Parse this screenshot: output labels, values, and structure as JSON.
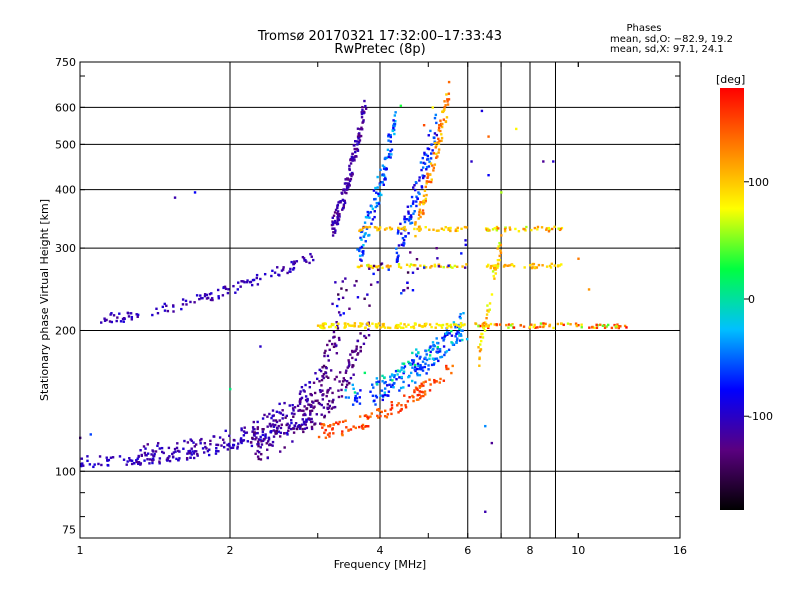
{
  "chart_data": {
    "type": "scatter",
    "title": "Tromsø 20170321 17:32:00–17:33:43",
    "subtitle": "RwPretec (8p)",
    "xlabel": "Frequency [MHz]",
    "ylabel": "Stationary phase Virtual Height [km]",
    "x_scale": "log",
    "y_scale": "log",
    "xlim": [
      1,
      16
    ],
    "ylim": [
      72,
      750
    ],
    "x_ticks": [
      1,
      2,
      4,
      6,
      8,
      10,
      16
    ],
    "x_grid": [
      2,
      4,
      6,
      7,
      8,
      9
    ],
    "y_ticks": [
      75,
      100,
      200,
      300,
      400,
      500,
      600,
      750
    ],
    "y_grid": [
      100,
      200,
      300,
      400,
      500,
      600
    ],
    "phase_info": {
      "heading": "Phases",
      "line_o": "mean, sd,O: −82.9, 19.2",
      "line_x": "mean, sd,X:  97.1, 24.1"
    },
    "colorbar": {
      "label": "[deg]",
      "range": [
        -180,
        180
      ],
      "ticks": [
        100,
        0,
        -100
      ],
      "colors": [
        "#000000",
        "#5a0080",
        "#0000ff",
        "#00c0ff",
        "#00ff40",
        "#ffff00",
        "#ff8000",
        "#ff0000"
      ]
    },
    "series": [
      {
        "traces": [
          {
            "f0": 1.0,
            "f1": 2.9,
            "h0": 105,
            "h1": 128,
            "curve": 2.2,
            "spread": 0.028,
            "n": 160,
            "ph": [
              -115,
              -90
            ]
          },
          {
            "f0": 1.3,
            "f1": 3.05,
            "h0": 110,
            "h1": 160,
            "curve": 2.6,
            "spread": 0.05,
            "n": 130,
            "ph": [
              -125,
              -95
            ]
          },
          {
            "f0": 2.2,
            "f1": 3.35,
            "h0": 115,
            "h1": 210,
            "curve": 2.4,
            "spread": 0.09,
            "n": 140,
            "ph": [
              -140,
              -105
            ]
          },
          {
            "f0": 2.8,
            "f1": 3.8,
            "h0": 130,
            "h1": 205,
            "curve": 1.8,
            "spread": 0.07,
            "n": 110,
            "ph": [
              -140,
              -110
            ]
          },
          {
            "f0": 1.1,
            "f1": 3.0,
            "h0": 212,
            "h1": 290,
            "curve": 1.5,
            "spread": 0.025,
            "n": 120,
            "ph": [
              -120,
              -90
            ]
          },
          {
            "f0": 3.0,
            "f1": 5.6,
            "h0": 122,
            "h1": 168,
            "curve": 1.8,
            "spread": 0.035,
            "n": 120,
            "ph": [
              130,
              170
            ]
          },
          {
            "f0": 3.4,
            "f1": 5.8,
            "h0": 140,
            "h1": 200,
            "curve": 1.6,
            "spread": 0.06,
            "n": 100,
            "ph": [
              -90,
              -40
            ]
          },
          {
            "f0": 4.0,
            "f1": 5.9,
            "h0": 150,
            "h1": 210,
            "curve": 1.4,
            "spread": 0.06,
            "n": 80,
            "ph": [
              -70,
              -20
            ]
          },
          {
            "f0": 3.2,
            "f1": 3.75,
            "h0": 330,
            "h1": 620,
            "curve": 1.3,
            "spread": 0.06,
            "n": 140,
            "ph": [
              -130,
              -100
            ]
          },
          {
            "f0": 3.6,
            "f1": 4.3,
            "h0": 290,
            "h1": 560,
            "curve": 1.2,
            "spread": 0.08,
            "n": 110,
            "ph": [
              -90,
              -20
            ]
          },
          {
            "f0": 4.3,
            "f1": 5.2,
            "h0": 300,
            "h1": 560,
            "curve": 1.2,
            "spread": 0.08,
            "n": 100,
            "ph": [
              -100,
              -40
            ]
          },
          {
            "f0": 4.7,
            "f1": 5.5,
            "h0": 330,
            "h1": 640,
            "curve": 1.1,
            "spread": 0.07,
            "n": 90,
            "ph": [
              90,
              150
            ]
          },
          {
            "f0": 3.0,
            "f1": 6.0,
            "h0": 205,
            "h1": 205,
            "curve": 1.0,
            "spread": 0.012,
            "n": 110,
            "ph": [
              70,
              110
            ]
          },
          {
            "f0": 6.2,
            "f1": 12.5,
            "h0": 205,
            "h1": 205,
            "curve": 1.0,
            "spread": 0.012,
            "n": 80,
            "ph": [
              40,
              180
            ]
          },
          {
            "f0": 3.6,
            "f1": 6.0,
            "h0": 330,
            "h1": 330,
            "curve": 1.0,
            "spread": 0.01,
            "n": 50,
            "ph": [
              80,
              120
            ]
          },
          {
            "f0": 3.6,
            "f1": 6.0,
            "h0": 275,
            "h1": 275,
            "curve": 1.0,
            "spread": 0.01,
            "n": 50,
            "ph": [
              60,
              120
            ]
          },
          {
            "f0": 6.5,
            "f1": 9.3,
            "h0": 330,
            "h1": 330,
            "curve": 1.0,
            "spread": 0.012,
            "n": 40,
            "ph": [
              60,
              140
            ]
          },
          {
            "f0": 6.5,
            "f1": 9.3,
            "h0": 275,
            "h1": 275,
            "curve": 1.0,
            "spread": 0.012,
            "n": 40,
            "ph": [
              80,
              120
            ]
          },
          {
            "f0": 6.3,
            "f1": 7.0,
            "h0": 175,
            "h1": 310,
            "curve": 1.0,
            "spread": 0.06,
            "n": 50,
            "ph": [
              60,
              130
            ]
          },
          {
            "f0": 3.2,
            "f1": 6.0,
            "h0": 230,
            "h1": 300,
            "curve": 1.0,
            "spread": 0.1,
            "n": 50,
            "ph": [
              -150,
              -60
            ]
          },
          {
            "f0": 3.4,
            "f1": 6.0,
            "h0": 150,
            "h1": 200,
            "curve": 1.2,
            "spread": 0.05,
            "n": 40,
            "ph": [
              -40,
              20
            ]
          }
        ],
        "stray_points": [
          [
            1.55,
            385,
            -110
          ],
          [
            1.7,
            395,
            -80
          ],
          [
            2.0,
            150,
            10
          ],
          [
            2.3,
            185,
            -100
          ],
          [
            5.1,
            600,
            80
          ],
          [
            6.4,
            590,
            -90
          ],
          [
            6.6,
            520,
            140
          ],
          [
            7.5,
            540,
            80
          ],
          [
            8.5,
            460,
            -120
          ],
          [
            8.9,
            460,
            -100
          ],
          [
            6.5,
            82,
            -110
          ],
          [
            6.7,
            115,
            -120
          ],
          [
            6.5,
            125,
            -40
          ],
          [
            10.5,
            245,
            120
          ],
          [
            10.0,
            285,
            130
          ],
          [
            7.0,
            395,
            60
          ],
          [
            6.6,
            430,
            -80
          ],
          [
            6.1,
            460,
            -100
          ],
          [
            4.4,
            605,
            30
          ],
          [
            4.9,
            550,
            150
          ],
          [
            1.05,
            120,
            -60
          ],
          [
            1.0,
            118,
            -120
          ]
        ]
      }
    ]
  }
}
